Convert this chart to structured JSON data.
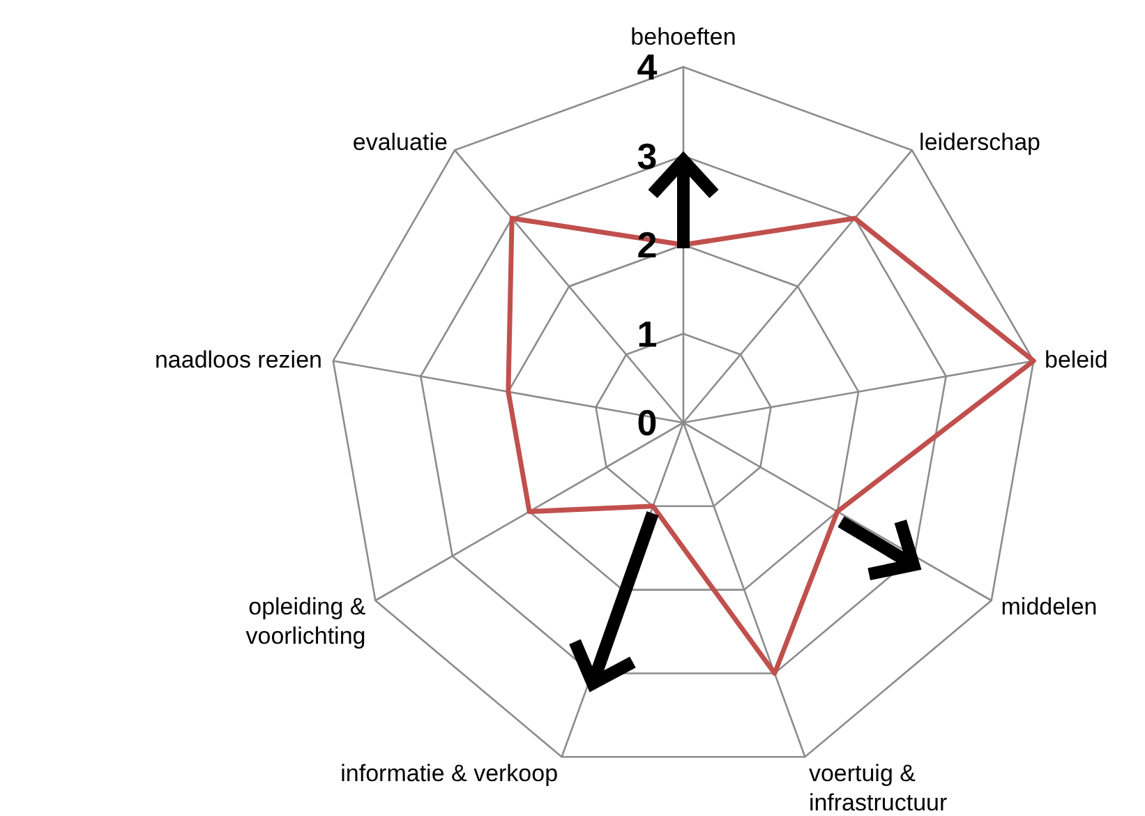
{
  "chart_data": {
    "type": "radar",
    "categories": [
      "behoeften",
      "leiderschap",
      "beleid",
      "middelen",
      "voertuig & infrastructuur",
      "informatie & verkoop",
      "opleiding & voorlichting",
      "naadloos rezien",
      "evaluatie"
    ],
    "series": [
      {
        "color": "#c0504d",
        "values": [
          2,
          3,
          4,
          2,
          3,
          1,
          2,
          2,
          3
        ]
      }
    ],
    "ylim": [
      0,
      4
    ],
    "yticks": [
      0,
      1,
      2,
      3,
      4
    ],
    "grid": true,
    "marker": "none",
    "line_style": "solid"
  }
}
